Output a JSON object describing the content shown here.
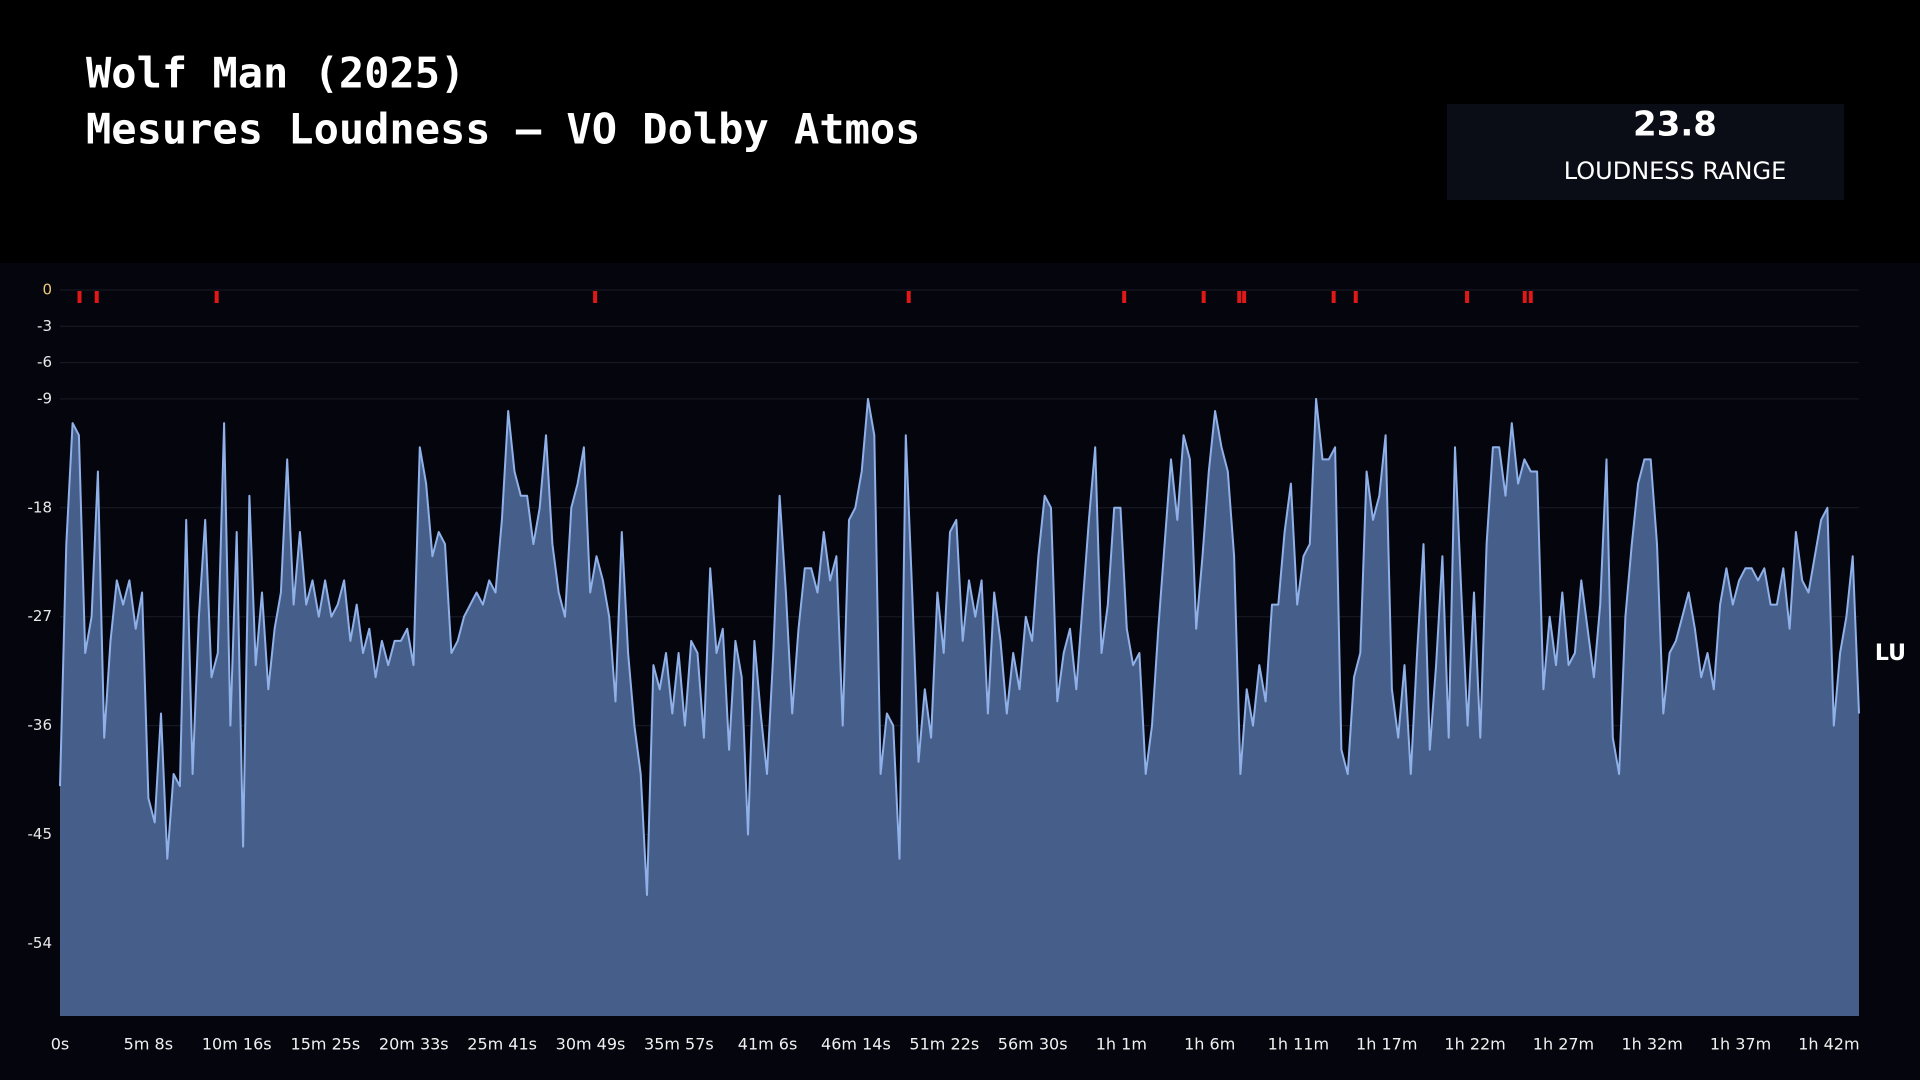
{
  "header": {
    "title": [
      "Wolf Man (2025)",
      "Mesures Loudness – VO Dolby Atmos"
    ]
  },
  "kpi": {
    "value": 23.8,
    "label": "LOUDNESS RANGE"
  },
  "chart_data": {
    "type": "area",
    "y_label": "LU",
    "xlim": [
      0,
      6270
    ],
    "ylim": [
      -60,
      0
    ],
    "yticks": [
      0,
      -3,
      -6,
      -9,
      -18,
      -27,
      -36,
      -45,
      -54
    ],
    "xticks": [
      {
        "value": 0,
        "label": "0s"
      },
      {
        "value": 308,
        "label": "5m 8s"
      },
      {
        "value": 616,
        "label": "10m 16s"
      },
      {
        "value": 925,
        "label": "15m 25s"
      },
      {
        "value": 1233,
        "label": "20m 33s"
      },
      {
        "value": 1541,
        "label": "25m 41s"
      },
      {
        "value": 1849,
        "label": "30m 49s"
      },
      {
        "value": 2157,
        "label": "35m 57s"
      },
      {
        "value": 2466,
        "label": "41m 6s"
      },
      {
        "value": 2774,
        "label": "46m 14s"
      },
      {
        "value": 3082,
        "label": "51m 22s"
      },
      {
        "value": 3390,
        "label": "56m 30s"
      },
      {
        "value": 3699,
        "label": "1h 1m"
      },
      {
        "value": 4007,
        "label": "1h 6m"
      },
      {
        "value": 4316,
        "label": "1h 11m"
      },
      {
        "value": 4624,
        "label": "1h 17m"
      },
      {
        "value": 4932,
        "label": "1h 22m"
      },
      {
        "value": 5240,
        "label": "1h 27m"
      },
      {
        "value": 5549,
        "label": "1h 32m"
      },
      {
        "value": 5857,
        "label": "1h 37m"
      },
      {
        "value": 6165,
        "label": "1h 42m"
      }
    ],
    "grid": true,
    "x": [
      0,
      22,
      44,
      66,
      88,
      110,
      132,
      154,
      176,
      198,
      220,
      242,
      264,
      286,
      308,
      330,
      352,
      374,
      396,
      418,
      440,
      462,
      484,
      506,
      528,
      550,
      572,
      594,
      616,
      638,
      660,
      682,
      704,
      726,
      748,
      770,
      792,
      814,
      836,
      858,
      880,
      902,
      924,
      946,
      968,
      990,
      1012,
      1034,
      1056,
      1078,
      1100,
      1122,
      1144,
      1166,
      1188,
      1210,
      1232,
      1254,
      1276,
      1298,
      1320,
      1342,
      1364,
      1386,
      1408,
      1430,
      1452,
      1474,
      1496,
      1518,
      1540,
      1562,
      1584,
      1606,
      1628,
      1650,
      1672,
      1694,
      1716,
      1738,
      1760,
      1782,
      1804,
      1826,
      1848,
      1870,
      1892,
      1914,
      1936,
      1958,
      1980,
      2002,
      2024,
      2046,
      2068,
      2090,
      2112,
      2134,
      2156,
      2178,
      2200,
      2222,
      2244,
      2266,
      2288,
      2310,
      2332,
      2354,
      2376,
      2398,
      2420,
      2442,
      2464,
      2486,
      2508,
      2530,
      2552,
      2574,
      2596,
      2618,
      2640,
      2662,
      2684,
      2706,
      2728,
      2750,
      2772,
      2794,
      2816,
      2838,
      2860,
      2882,
      2904,
      2926,
      2948,
      2970,
      2992,
      3014,
      3036,
      3058,
      3080,
      3102,
      3124,
      3146,
      3168,
      3190,
      3212,
      3234,
      3256,
      3278,
      3300,
      3322,
      3344,
      3366,
      3388,
      3410,
      3432,
      3454,
      3476,
      3498,
      3520,
      3542,
      3564,
      3586,
      3608,
      3630,
      3652,
      3674,
      3696,
      3718,
      3740,
      3762,
      3784,
      3806,
      3828,
      3850,
      3872,
      3894,
      3916,
      3938,
      3960,
      3982,
      4004,
      4026,
      4048,
      4070,
      4092,
      4114,
      4136,
      4158,
      4180,
      4202,
      4224,
      4246,
      4268,
      4290,
      4312,
      4334,
      4356,
      4378,
      4400,
      4422,
      4444,
      4466,
      4488,
      4510,
      4532,
      4554,
      4576,
      4598,
      4620,
      4642,
      4664,
      4686,
      4708,
      4730,
      4752,
      4774,
      4796,
      4818,
      4840,
      4862,
      4884,
      4906,
      4928,
      4950,
      4972,
      4994,
      5016,
      5038,
      5060,
      5082,
      5104,
      5126,
      5148,
      5170,
      5192,
      5214,
      5236,
      5258,
      5280,
      5302,
      5324,
      5346,
      5368,
      5390,
      5412,
      5434,
      5456,
      5478,
      5500,
      5522,
      5544,
      5566,
      5588,
      5610,
      5632,
      5654,
      5676,
      5698,
      5720,
      5742,
      5764,
      5786,
      5808,
      5830,
      5852,
      5874,
      5896,
      5918,
      5940,
      5962,
      5984,
      6006,
      6028,
      6050,
      6072,
      6094,
      6116,
      6138,
      6160,
      6182,
      6204,
      6226,
      6248,
      6270
    ],
    "series": [
      {
        "color": "#8fb0e8",
        "fill": "#465f8a",
        "values": [
          -41,
          -21,
          -11,
          -12,
          -30,
          -27,
          -15,
          -37,
          -29,
          -24,
          -26,
          -24,
          -28,
          -25,
          -42,
          -44,
          -35,
          -47,
          -40,
          -41,
          -19,
          -40,
          -27,
          -19,
          -32,
          -30,
          -11,
          -36,
          -20,
          -46,
          -17,
          -31,
          -25,
          -33,
          -28,
          -25,
          -14,
          -26,
          -20,
          -26,
          -24,
          -27,
          -24,
          -27,
          -26,
          -24,
          -29,
          -26,
          -30,
          -28,
          -32,
          -29,
          -31,
          -29,
          -29,
          -28,
          -31,
          -13,
          -16,
          -22,
          -20,
          -21,
          -30,
          -29,
          -27,
          -26,
          -25,
          -26,
          -24,
          -25,
          -19,
          -10,
          -15,
          -17,
          -17,
          -21,
          -18,
          -12,
          -21,
          -25,
          -27,
          -18,
          -16,
          -13,
          -25,
          -22,
          -24,
          -27,
          -34,
          -20,
          -30,
          -36,
          -40,
          -50,
          -31,
          -33,
          -30,
          -35,
          -30,
          -36,
          -29,
          -30,
          -37,
          -23,
          -30,
          -28,
          -38,
          -29,
          -32,
          -45,
          -29,
          -35,
          -40,
          -30,
          -17,
          -25,
          -35,
          -28,
          -23,
          -23,
          -25,
          -20,
          -24,
          -22,
          -36,
          -19,
          -18,
          -15,
          -9,
          -12,
          -40,
          -35,
          -36,
          -47,
          -12,
          -25,
          -39,
          -33,
          -37,
          -25,
          -30,
          -20,
          -19,
          -29,
          -24,
          -27,
          -24,
          -35,
          -25,
          -29,
          -35,
          -30,
          -33,
          -27,
          -29,
          -22,
          -17,
          -18,
          -34,
          -30,
          -28,
          -33,
          -26,
          -19,
          -13,
          -30,
          -26,
          -18,
          -18,
          -28,
          -31,
          -30,
          -40,
          -36,
          -28,
          -21,
          -14,
          -19,
          -12,
          -14,
          -28,
          -22,
          -15,
          -10,
          -13,
          -15,
          -22,
          -40,
          -33,
          -36,
          -31,
          -34,
          -26,
          -26,
          -20,
          -16,
          -26,
          -22,
          -21,
          -9,
          -14,
          -14,
          -13,
          -38,
          -40,
          -32,
          -30,
          -15,
          -19,
          -17,
          -12,
          -33,
          -37,
          -31,
          -40,
          -30,
          -21,
          -38,
          -31,
          -22,
          -37,
          -13,
          -25,
          -36,
          -25,
          -37,
          -21,
          -13,
          -13,
          -17,
          -11,
          -16,
          -14,
          -15,
          -15,
          -33,
          -27,
          -31,
          -25,
          -31,
          -30,
          -24,
          -28,
          -32,
          -26,
          -14,
          -37,
          -40,
          -27,
          -21,
          -16,
          -14,
          -14,
          -21,
          -35,
          -30,
          -29,
          -27,
          -25,
          -28,
          -32,
          -30,
          -33,
          -26,
          -23,
          -26,
          -24,
          -23,
          -23,
          -24,
          -23,
          -26,
          -26,
          -23,
          -28,
          -20,
          -24,
          -25,
          -22,
          -19,
          -18,
          -36,
          -30,
          -27,
          -22,
          -35
        ]
      }
    ],
    "markers": {
      "color": "#e01818",
      "x": [
        68,
        128,
        546,
        1865,
        2958,
        3709,
        3986,
        4110,
        4127,
        4439,
        4516,
        4904,
        5105,
        5126
      ]
    }
  }
}
